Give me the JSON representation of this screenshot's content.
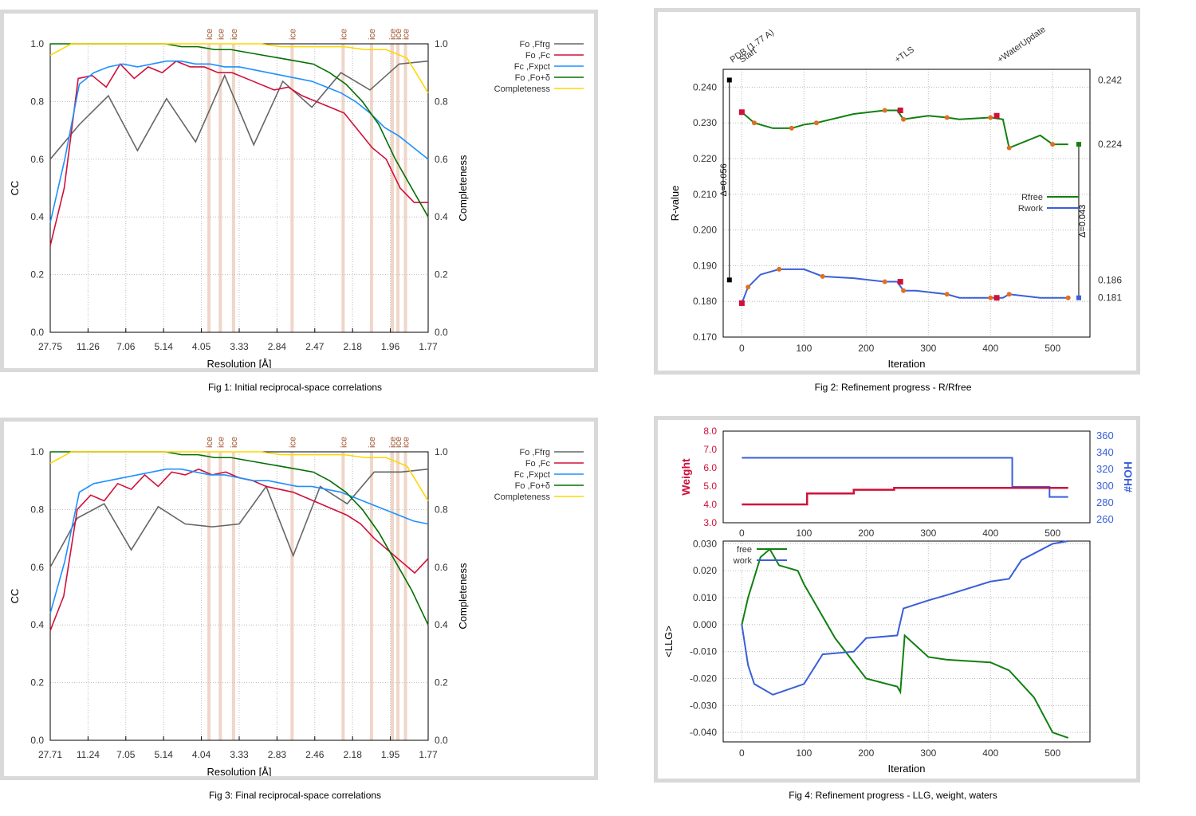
{
  "captions": {
    "fig1": "Fig 1:  Initial reciprocal-space correlations",
    "fig2": "Fig 2:  Refinement progress - R/Rfree",
    "fig3": "Fig 3:  Final reciprocal-space correlations",
    "fig4": "Fig 4:  Refinement progress - LLG, weight, waters"
  },
  "colors": {
    "fo_ffrg": "#666666",
    "fo_fc": "#d0103a",
    "fc_fxpct": "#1e90ff",
    "fo_fo_delta": "#007000",
    "completeness": "#ffd700",
    "rfree": "#108010",
    "rwork": "#3a5fd9",
    "ice": "#e8c4b0",
    "weight": "#d0103a",
    "hoh": "#3a5fd9"
  },
  "chart_data": [
    {
      "id": "fig1",
      "type": "line",
      "xlabel": "Resolution [Å]",
      "ylabel": "CC",
      "y2label": "Completeness",
      "xticks": [
        "27.75",
        "11.26",
        "7.06",
        "5.14",
        "4.05",
        "3.33",
        "2.84",
        "2.47",
        "2.18",
        "1.96",
        "1.77"
      ],
      "yticks": [
        "0.0",
        "0.2",
        "0.4",
        "0.6",
        "0.8",
        "1.0"
      ],
      "y2ticks": [
        "0.0",
        "0.2",
        "0.4",
        "0.6",
        "0.8",
        "1.0"
      ],
      "ylim": [
        0,
        1
      ],
      "ice_label": "ice",
      "ice_positions": [
        0.42,
        0.45,
        0.485,
        0.64,
        0.775,
        0.85,
        0.905,
        0.92,
        0.94
      ],
      "legend": [
        "Fo ,Ffrg",
        "Fo ,Fc",
        "Fc ,Fxpct",
        "Fo ,Fo+δ",
        "Completeness"
      ],
      "series": [
        {
          "key": "fo_ffrg",
          "values": [
            0.6,
            0.72,
            0.82,
            0.63,
            0.81,
            0.66,
            0.89,
            0.65,
            0.87,
            0.78,
            0.9,
            0.84,
            0.93,
            0.94
          ]
        },
        {
          "key": "fo_fc",
          "values": [
            0.3,
            0.5,
            0.88,
            0.89,
            0.85,
            0.93,
            0.88,
            0.92,
            0.9,
            0.94,
            0.92,
            0.92,
            0.9,
            0.9,
            0.88,
            0.86,
            0.84,
            0.85,
            0.82,
            0.8,
            0.78,
            0.76,
            0.7,
            0.64,
            0.6,
            0.5,
            0.45,
            0.45
          ]
        },
        {
          "key": "fc_fxpct",
          "values": [
            0.38,
            0.6,
            0.86,
            0.9,
            0.92,
            0.93,
            0.92,
            0.93,
            0.94,
            0.94,
            0.93,
            0.93,
            0.92,
            0.92,
            0.91,
            0.9,
            0.89,
            0.88,
            0.87,
            0.85,
            0.83,
            0.8,
            0.76,
            0.71,
            0.68,
            0.64,
            0.6
          ]
        },
        {
          "key": "fo_fo_delta",
          "values": [
            1.0,
            1.0,
            1.0,
            1.0,
            1.0,
            1.0,
            1.0,
            1.0,
            0.99,
            0.99,
            0.98,
            0.98,
            0.97,
            0.96,
            0.95,
            0.94,
            0.93,
            0.9,
            0.86,
            0.8,
            0.72,
            0.6,
            0.5,
            0.4
          ]
        },
        {
          "key": "completeness",
          "values": [
            0.96,
            1.0,
            1.0,
            1.0,
            1.0,
            1.0,
            1.0,
            1.0,
            1.0,
            1.0,
            1.0,
            0.99,
            0.99,
            0.99,
            0.99,
            0.98,
            0.98,
            0.95,
            0.83
          ]
        }
      ]
    },
    {
      "id": "fig3",
      "type": "line",
      "xlabel": "Resolution [Å]",
      "ylabel": "CC",
      "y2label": "Completeness",
      "xticks": [
        "27.71",
        "11.24",
        "7.05",
        "5.14",
        "4.04",
        "3.33",
        "2.83",
        "2.46",
        "2.18",
        "1.95",
        "1.77"
      ],
      "yticks": [
        "0.0",
        "0.2",
        "0.4",
        "0.6",
        "0.8",
        "1.0"
      ],
      "y2ticks": [
        "0.0",
        "0.2",
        "0.4",
        "0.6",
        "0.8",
        "1.0"
      ],
      "ylim": [
        0,
        1
      ],
      "ice_label": "ice",
      "ice_positions": [
        0.42,
        0.45,
        0.485,
        0.64,
        0.775,
        0.85,
        0.905,
        0.92,
        0.94
      ],
      "legend": [
        "Fo ,Ffrg",
        "Fo ,Fc",
        "Fc ,Fxpct",
        "Fo ,Fo+δ",
        "Completeness"
      ],
      "series": [
        {
          "key": "fo_ffrg",
          "values": [
            0.6,
            0.77,
            0.82,
            0.66,
            0.81,
            0.75,
            0.74,
            0.75,
            0.88,
            0.64,
            0.88,
            0.82,
            0.93,
            0.93,
            0.94
          ]
        },
        {
          "key": "fo_fc",
          "values": [
            0.38,
            0.5,
            0.8,
            0.85,
            0.83,
            0.89,
            0.87,
            0.92,
            0.88,
            0.93,
            0.92,
            0.94,
            0.92,
            0.93,
            0.91,
            0.9,
            0.88,
            0.87,
            0.86,
            0.84,
            0.82,
            0.8,
            0.78,
            0.75,
            0.7,
            0.66,
            0.62,
            0.58,
            0.63
          ]
        },
        {
          "key": "fc_fxpct",
          "values": [
            0.44,
            0.62,
            0.86,
            0.89,
            0.9,
            0.91,
            0.92,
            0.93,
            0.94,
            0.94,
            0.93,
            0.92,
            0.92,
            0.91,
            0.9,
            0.9,
            0.89,
            0.88,
            0.88,
            0.87,
            0.86,
            0.84,
            0.82,
            0.8,
            0.78,
            0.76,
            0.75
          ]
        },
        {
          "key": "fo_fo_delta",
          "values": [
            1.0,
            1.0,
            1.0,
            1.0,
            1.0,
            1.0,
            1.0,
            1.0,
            0.99,
            0.99,
            0.98,
            0.98,
            0.97,
            0.96,
            0.95,
            0.94,
            0.93,
            0.9,
            0.86,
            0.8,
            0.72,
            0.62,
            0.52,
            0.4
          ]
        },
        {
          "key": "completeness",
          "values": [
            0.96,
            1.0,
            1.0,
            1.0,
            1.0,
            1.0,
            1.0,
            1.0,
            1.0,
            1.0,
            1.0,
            0.99,
            0.99,
            0.99,
            0.99,
            0.98,
            0.98,
            0.95,
            0.83
          ]
        }
      ]
    },
    {
      "id": "fig2",
      "type": "line",
      "xlabel": "Iteration",
      "ylabel": "R-value",
      "xlim": [
        -30,
        560
      ],
      "ylim": [
        0.17,
        0.245
      ],
      "xticks": [
        0,
        100,
        200,
        300,
        400,
        500
      ],
      "yticks": [
        "0.170",
        "0.180",
        "0.190",
        "0.200",
        "0.210",
        "0.220",
        "0.230",
        "0.240"
      ],
      "markers": [
        "PDB (1.77 A)",
        "Start",
        "+TLS",
        "+WaterUpdate"
      ],
      "delta_left": "Δ=0.056",
      "delta_right": "Δ=0.043",
      "pdb_values": [
        0.242,
        0.186
      ],
      "right_labels": [
        "0.242",
        "0.224",
        "0.186",
        "0.181"
      ],
      "series": [
        {
          "name": "Rfree",
          "x": [
            0,
            20,
            50,
            80,
            100,
            120,
            180,
            230,
            250,
            260,
            300,
            330,
            350,
            400,
            420,
            430,
            480,
            500,
            525
          ],
          "y": [
            0.233,
            0.23,
            0.2285,
            0.2285,
            0.2295,
            0.23,
            0.2325,
            0.2335,
            0.2335,
            0.231,
            0.232,
            0.2315,
            0.231,
            0.2315,
            0.231,
            0.223,
            0.2265,
            0.224,
            0.224
          ]
        },
        {
          "name": "Rwork",
          "x": [
            0,
            10,
            30,
            60,
            100,
            130,
            180,
            230,
            250,
            260,
            280,
            330,
            350,
            400,
            420,
            430,
            480,
            525
          ],
          "y": [
            0.1795,
            0.184,
            0.1875,
            0.189,
            0.189,
            0.187,
            0.1865,
            0.1855,
            0.1855,
            0.183,
            0.183,
            0.182,
            0.181,
            0.181,
            0.181,
            0.182,
            0.181,
            0.181
          ]
        }
      ]
    },
    {
      "id": "fig4",
      "type": "line",
      "xlabel": "Iteration",
      "ylabel": "<LLG>",
      "weight_label": "Weight",
      "hoh_label": "HOH#",
      "xticks": [
        0,
        100,
        200,
        300,
        400,
        500
      ],
      "weight_ticks": [
        "3.0",
        "4.0",
        "5.0",
        "6.0",
        "7.0",
        "8.0"
      ],
      "hoh_ticks": [
        "260",
        "280",
        "300",
        "320",
        "340",
        "360"
      ],
      "llg_ticks": [
        "-0.040",
        "-0.030",
        "-0.020",
        "-0.010",
        "0.000",
        "0.010",
        "0.020",
        "0.030"
      ],
      "weight": {
        "x": [
          0,
          105,
          105,
          180,
          180,
          245,
          245,
          525
        ],
        "y": [
          4.0,
          4.0,
          4.6,
          4.6,
          4.8,
          4.8,
          4.9,
          4.9
        ]
      },
      "hoh": {
        "x": [
          0,
          435,
          435,
          495,
          495,
          525
        ],
        "y": [
          333,
          333,
          298,
          298,
          286,
          286
        ]
      },
      "series": [
        {
          "name": "free",
          "x": [
            0,
            10,
            30,
            45,
            60,
            90,
            100,
            150,
            200,
            250,
            255,
            262,
            300,
            330,
            400,
            430,
            470,
            500,
            525
          ],
          "y": [
            0.0,
            0.01,
            0.025,
            0.028,
            0.022,
            0.02,
            0.015,
            -0.005,
            -0.02,
            -0.023,
            -0.025,
            -0.004,
            -0.012,
            -0.013,
            -0.014,
            -0.017,
            -0.027,
            -0.04,
            -0.042
          ]
        },
        {
          "name": "work",
          "x": [
            0,
            10,
            20,
            50,
            100,
            130,
            180,
            200,
            250,
            260,
            300,
            330,
            400,
            430,
            450,
            500,
            525
          ],
          "y": [
            0.0,
            -0.015,
            -0.022,
            -0.026,
            -0.022,
            -0.011,
            -0.01,
            -0.005,
            -0.004,
            0.006,
            0.009,
            0.011,
            0.016,
            0.017,
            0.024,
            0.03,
            0.031
          ]
        }
      ]
    }
  ]
}
